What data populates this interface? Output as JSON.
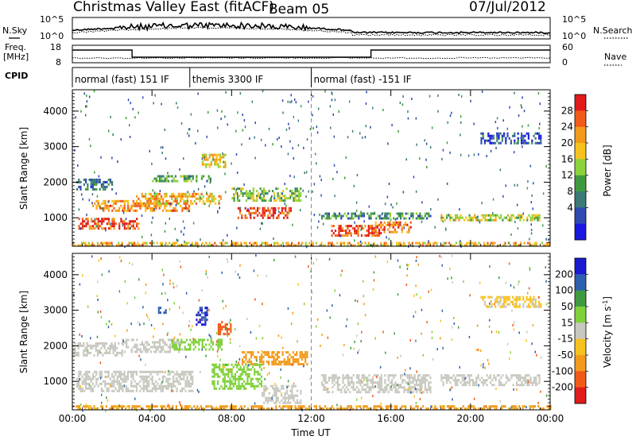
{
  "header": {
    "station": "Christmas Valley East (fitACF)",
    "beam": "Beam 05",
    "date": "07/Jul/2012"
  },
  "noise_panel": {
    "left_label": "N.Sky",
    "right_label": "N.Search",
    "y_ticks": [
      "10^5",
      "10^0"
    ],
    "y_ticks_right": [
      "10^5",
      "10^0"
    ]
  },
  "freq_panel": {
    "left_label_top": "Freq.",
    "left_label_bottom": "[MHz]",
    "left_ticks": [
      "18",
      "8"
    ],
    "right_label": "Nave",
    "right_ticks": [
      "60",
      "0"
    ]
  },
  "cpid": {
    "label": "CPID",
    "segments": [
      {
        "label": "normal (fast) 151 IF",
        "start_hour": 0,
        "end_hour": 5.9
      },
      {
        "label": "themis 3300 IF",
        "start_hour": 5.9,
        "end_hour": 12.0
      },
      {
        "label": "normal (fast) -151 IF",
        "start_hour": 12.0,
        "end_hour": 24.0
      }
    ]
  },
  "chart_data": [
    {
      "type": "heatmap",
      "name": "Power",
      "ylabel": "Slant Range [km]",
      "ylim": [
        200,
        4600
      ],
      "yticks": [
        1000,
        2000,
        3000,
        4000
      ],
      "xlim": [
        0,
        24
      ],
      "xticks": [
        0,
        4,
        8,
        12,
        16,
        20,
        24
      ],
      "colorbar_label": "Power [dB]",
      "colorbar_ticks": [
        "28",
        "24",
        "20",
        "16",
        "12",
        "8",
        "4"
      ],
      "colorbar_colors": [
        "#e11a1a",
        "#f25a18",
        "#f39a1b",
        "#f7c21e",
        "#8bd33a",
        "#3f9a3f",
        "#3b7a76",
        "#2d4bb0",
        "#1818e0"
      ],
      "blobs": [
        {
          "t0": 0.3,
          "t1": 3.3,
          "r0": 700,
          "r1": 1000,
          "level": 26
        },
        {
          "t0": 1.0,
          "t1": 6.0,
          "r0": 1200,
          "r1": 1500,
          "level": 22
        },
        {
          "t0": 3.2,
          "t1": 7.5,
          "r0": 1400,
          "r1": 1700,
          "level": 20
        },
        {
          "t0": 0.2,
          "t1": 2.0,
          "r0": 1800,
          "r1": 2100,
          "level": 8
        },
        {
          "t0": 4.0,
          "t1": 7.0,
          "r0": 2000,
          "r1": 2200,
          "level": 12
        },
        {
          "t0": 6.5,
          "t1": 7.7,
          "r0": 2400,
          "r1": 2800,
          "level": 18
        },
        {
          "t0": 8.3,
          "t1": 11.0,
          "r0": 1000,
          "r1": 1300,
          "level": 26
        },
        {
          "t0": 8.0,
          "t1": 11.5,
          "r0": 1500,
          "r1": 1850,
          "level": 14
        },
        {
          "t0": 13.0,
          "t1": 15.5,
          "r0": 500,
          "r1": 800,
          "level": 26
        },
        {
          "t0": 15.2,
          "t1": 17.0,
          "r0": 600,
          "r1": 900,
          "level": 24
        },
        {
          "t0": 12.5,
          "t1": 18.0,
          "r0": 1000,
          "r1": 1150,
          "level": 10
        },
        {
          "t0": 18.5,
          "t1": 23.5,
          "r0": 900,
          "r1": 1100,
          "level": 16
        },
        {
          "t0": 20.5,
          "t1": 23.5,
          "r0": 3100,
          "r1": 3400,
          "level": 6
        },
        {
          "t0": 0.0,
          "t1": 24.0,
          "r0": 200,
          "r1": 320,
          "level": 20
        }
      ]
    },
    {
      "type": "heatmap",
      "name": "Velocity",
      "ylabel": "Slant Range [km]",
      "ylim": [
        200,
        4600
      ],
      "yticks": [
        1000,
        2000,
        3000,
        4000
      ],
      "xlim": [
        0,
        24
      ],
      "xticks": [
        0,
        4,
        8,
        12,
        16,
        20,
        24
      ],
      "xticklabels": [
        "00:00",
        "04:00",
        "08:00",
        "12:00",
        "16:00",
        "20:00",
        "00:00"
      ],
      "xlabel": "Time UT",
      "colorbar_label": "Velocity [m s^-1]",
      "colorbar_ticks": [
        "200",
        "100",
        "50",
        "15",
        "-15",
        "-50",
        "-100",
        "-200"
      ],
      "colorbar_colors": [
        "#1a1ad0",
        "#2d5fb0",
        "#3f9a3f",
        "#7fd13a",
        "#c8c8c0",
        "#f7c21e",
        "#f39a1b",
        "#f25a18",
        "#e11a1a"
      ],
      "blobs": [
        {
          "t0": 0.2,
          "t1": 6.0,
          "r0": 700,
          "r1": 1300,
          "level": 0
        },
        {
          "t0": 0.0,
          "t1": 2.5,
          "r0": 1700,
          "r1": 2100,
          "level": 0
        },
        {
          "t0": 2.5,
          "t1": 5.5,
          "r0": 1800,
          "r1": 2200,
          "level": 0
        },
        {
          "t0": 5.0,
          "t1": 7.5,
          "r0": 1900,
          "r1": 2200,
          "level": 30
        },
        {
          "t0": 4.3,
          "t1": 4.7,
          "r0": 2900,
          "r1": 3100,
          "level": 180
        },
        {
          "t0": 6.2,
          "t1": 6.8,
          "r0": 2600,
          "r1": 3100,
          "level": 200
        },
        {
          "t0": 7.3,
          "t1": 8.0,
          "r0": 2300,
          "r1": 2700,
          "level": -120
        },
        {
          "t0": 8.5,
          "t1": 11.8,
          "r0": 1500,
          "r1": 1850,
          "level": -80
        },
        {
          "t0": 7.0,
          "t1": 9.5,
          "r0": 800,
          "r1": 1500,
          "level": 30
        },
        {
          "t0": 9.5,
          "t1": 11.5,
          "r0": 400,
          "r1": 900,
          "level": 0
        },
        {
          "t0": 12.5,
          "t1": 18.0,
          "r0": 700,
          "r1": 1200,
          "level": 0
        },
        {
          "t0": 18.5,
          "t1": 23.5,
          "r0": 900,
          "r1": 1200,
          "level": 0
        },
        {
          "t0": 20.5,
          "t1": 23.5,
          "r0": 3100,
          "r1": 3400,
          "level": -20
        },
        {
          "t0": 0.0,
          "t1": 24.0,
          "r0": 200,
          "r1": 330,
          "level": -60
        }
      ]
    }
  ]
}
